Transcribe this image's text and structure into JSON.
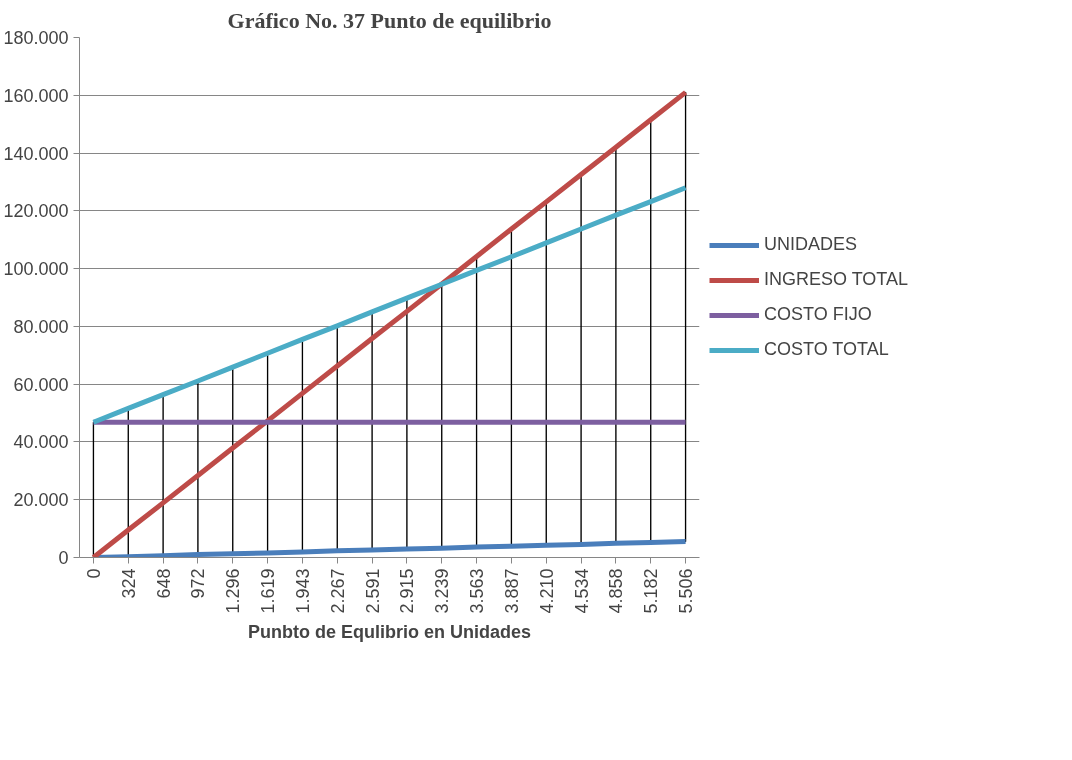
{
  "chart_data": {
    "type": "line",
    "title": "Gráfico No. 37 Punto de equilibrio",
    "xlabel": "Punbto de Equlibrio en Unidades",
    "categories": [
      "0",
      "324",
      "648",
      "972",
      "1.296",
      "1.619",
      "1.943",
      "2.267",
      "2.591",
      "2.915",
      "3.239",
      "3.563",
      "3.887",
      "4.210",
      "4.534",
      "4.858",
      "5.182",
      "5.506"
    ],
    "series": [
      {
        "type": "bar",
        "color": "#000000",
        "base": [
          0,
          300,
          600,
          1000,
          1300,
          1600,
          1900,
          2300,
          2600,
          2900,
          3200,
          3600,
          3900,
          4200,
          4500,
          4900,
          5200,
          5500
        ],
        "values": [
          46800,
          51300,
          55800,
          60100,
          64600,
          69100,
          73600,
          77900,
          82400,
          86900,
          91500,
          100600,
          109800,
          118900,
          128100,
          137100,
          146300,
          155500
        ]
      },
      {
        "name": "UNIDADES",
        "color": "#4a7ebb",
        "values": [
          0,
          300,
          600,
          1000,
          1300,
          1600,
          1900,
          2300,
          2600,
          2900,
          3200,
          3600,
          3900,
          4200,
          4500,
          4900,
          5200,
          5500
        ]
      },
      {
        "name": "INGRESO TOTAL",
        "color": "#be4b48",
        "values": [
          0,
          9500,
          18900,
          28400,
          37900,
          47300,
          56800,
          66300,
          75800,
          85200,
          94700,
          104200,
          113700,
          123100,
          132600,
          142000,
          151500,
          161000
        ]
      },
      {
        "name": "COSTO FIJO",
        "color": "#7d5fa0",
        "values": [
          46800,
          46800,
          46800,
          46800,
          46800,
          46800,
          46800,
          46800,
          46800,
          46800,
          46800,
          46800,
          46800,
          46800,
          46800,
          46800,
          46800,
          46800
        ]
      },
      {
        "name": "COSTO TOTAL",
        "color": "#4bacc6",
        "values": [
          46800,
          51600,
          56400,
          61100,
          65900,
          70700,
          75500,
          80200,
          85000,
          89800,
          94600,
          99400,
          104100,
          108900,
          113700,
          118500,
          123200,
          128000
        ]
      }
    ],
    "ylim": [
      0,
      180000
    ],
    "yticks": [
      {
        "value": 0,
        "label": "0"
      },
      {
        "value": 20000,
        "label": "20.000"
      },
      {
        "value": 40000,
        "label": "40.000"
      },
      {
        "value": 60000,
        "label": "60.000"
      },
      {
        "value": 80000,
        "label": "80.000"
      },
      {
        "value": 100000,
        "label": "100.000"
      },
      {
        "value": 120000,
        "label": "120.000"
      },
      {
        "value": 140000,
        "label": "140.000"
      },
      {
        "value": 160000,
        "label": "160.000"
      },
      {
        "value": 180000,
        "label": "180.000"
      }
    ],
    "grid": "y",
    "legend": "right",
    "marker": "none",
    "line_style": "solid"
  }
}
